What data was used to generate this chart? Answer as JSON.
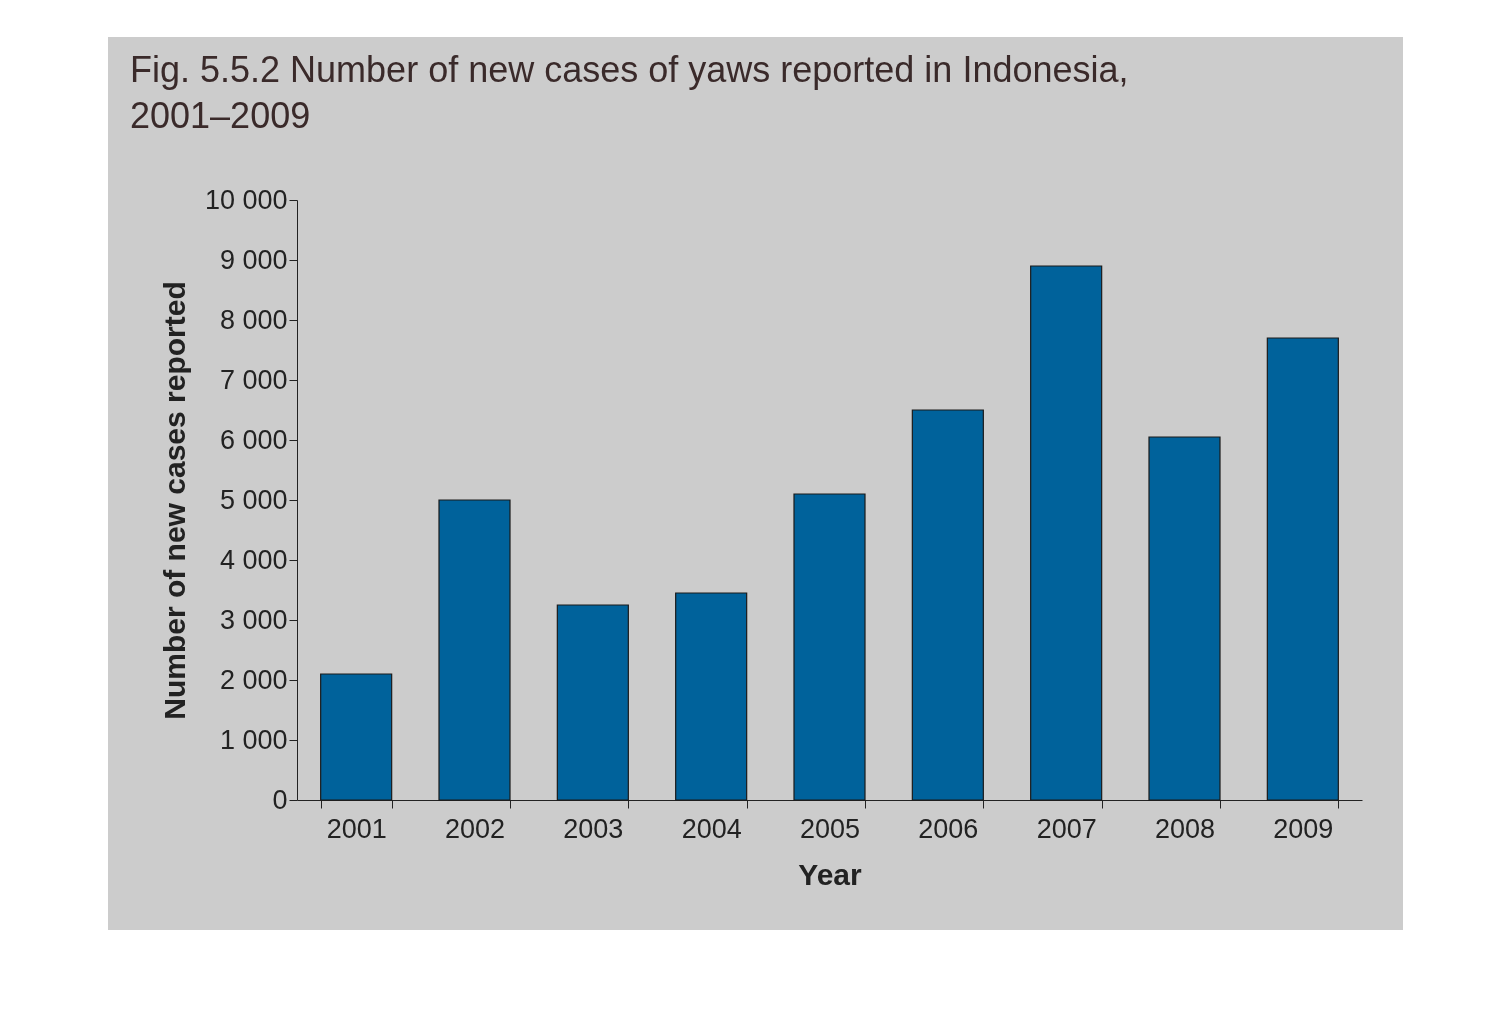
{
  "chart_data": {
    "type": "bar",
    "title": "Fig. 5.5.2  Number of new cases of yaws reported in Indonesia, 2001–2009",
    "xlabel": "Year",
    "ylabel": "Number of new cases reported",
    "categories": [
      "2001",
      "2002",
      "2003",
      "2004",
      "2005",
      "2006",
      "2007",
      "2008",
      "2009"
    ],
    "values": [
      2100,
      5000,
      3250,
      3450,
      5100,
      6500,
      8900,
      6050,
      7700
    ],
    "color": "#00629b",
    "ylim": [
      0,
      10000
    ],
    "yticks": [
      0,
      {
        "value": 1000,
        "label": "1 000"
      },
      {
        "value": 2000,
        "label": "2 000"
      },
      {
        "value": 3000,
        "label": "3 000"
      },
      {
        "value": 4000,
        "label": "4 000"
      },
      {
        "value": 5000,
        "label": "5 000"
      },
      {
        "value": 6000,
        "label": "6 000"
      },
      {
        "value": 7000,
        "label": "7 000"
      },
      {
        "value": 8000,
        "label": "8 000"
      },
      {
        "value": 9000,
        "label": "9 000"
      },
      {
        "value": 10000,
        "label": "10 000"
      }
    ],
    "grid": false
  }
}
